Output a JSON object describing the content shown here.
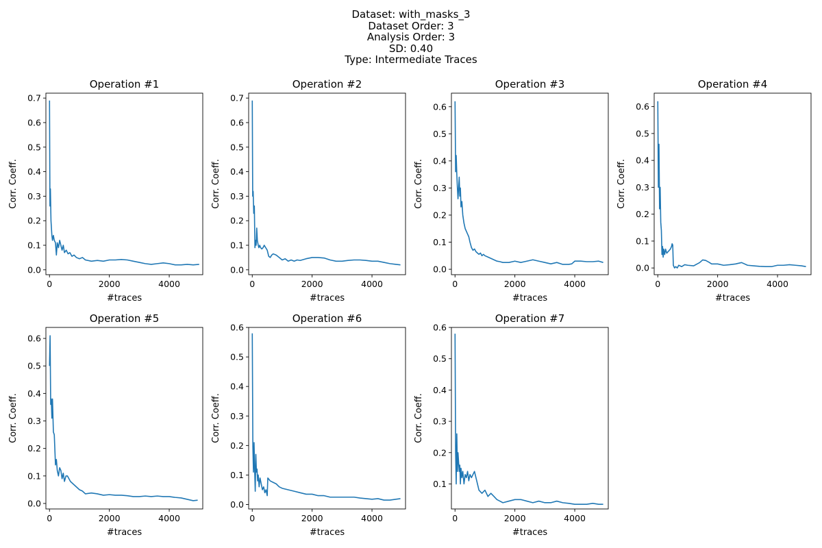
{
  "figure": {
    "suptitle_lines": [
      "Dataset: with_masks_3",
      "Dataset Order: 3",
      "Analysis Order: 3",
      "SD: 0.40",
      "Type: Intermediate Traces"
    ]
  },
  "colors": {
    "line": "#1f77b4",
    "axes": "#000000",
    "background": "#ffffff"
  },
  "chart_data": [
    {
      "type": "line",
      "title": "Operation #1",
      "xlabel": "#traces",
      "ylabel": "Corr. Coeff.",
      "xlim": [
        -120,
        5120
      ],
      "ylim": [
        -0.02,
        0.72
      ],
      "xticks": [
        0,
        2000,
        4000
      ],
      "yticks": [
        0.0,
        0.1,
        0.2,
        0.3,
        0.4,
        0.5,
        0.6,
        0.7
      ],
      "ytick_labels": [
        "0.0",
        "0.1",
        "0.2",
        "0.3",
        "0.4",
        "0.5",
        "0.6",
        "0.7"
      ],
      "grid": false,
      "series": [
        {
          "x": [
            1,
            15,
            30,
            50,
            80,
            100,
            130,
            160,
            200,
            230,
            260,
            300,
            340,
            380,
            420,
            460,
            500,
            560,
            620,
            680,
            750,
            820,
            900,
            1000,
            1100,
            1200,
            1400,
            1600,
            1800,
            2000,
            2200,
            2400,
            2600,
            2800,
            3000,
            3200,
            3400,
            3600,
            3800,
            4000,
            4200,
            4400,
            4600,
            4800,
            5000
          ],
          "y": [
            0.69,
            0.26,
            0.33,
            0.2,
            0.14,
            0.12,
            0.14,
            0.12,
            0.11,
            0.06,
            0.11,
            0.09,
            0.12,
            0.1,
            0.08,
            0.1,
            0.07,
            0.08,
            0.065,
            0.07,
            0.055,
            0.06,
            0.05,
            0.045,
            0.05,
            0.04,
            0.035,
            0.038,
            0.035,
            0.04,
            0.04,
            0.042,
            0.04,
            0.035,
            0.03,
            0.025,
            0.022,
            0.025,
            0.028,
            0.025,
            0.02,
            0.02,
            0.022,
            0.02,
            0.022
          ]
        }
      ]
    },
    {
      "type": "line",
      "title": "Operation #2",
      "xlabel": "#traces",
      "ylabel": "Corr. Coeff.",
      "xlim": [
        -120,
        5120
      ],
      "ylim": [
        -0.02,
        0.72
      ],
      "xticks": [
        0,
        2000,
        4000
      ],
      "yticks": [
        0.0,
        0.1,
        0.2,
        0.3,
        0.4,
        0.5,
        0.6,
        0.7
      ],
      "ytick_labels": [
        "0.0",
        "0.1",
        "0.2",
        "0.3",
        "0.4",
        "0.5",
        "0.6",
        "0.7"
      ],
      "grid": false,
      "series": [
        {
          "x": [
            1,
            15,
            30,
            50,
            70,
            90,
            110,
            130,
            150,
            170,
            200,
            220,
            250,
            280,
            320,
            360,
            400,
            450,
            500,
            550,
            600,
            650,
            700,
            800,
            900,
            1000,
            1100,
            1200,
            1300,
            1400,
            1500,
            1600,
            1800,
            2000,
            2200,
            2400,
            2600,
            2800,
            3000,
            3200,
            3400,
            3600,
            3800,
            4000,
            4200,
            4400,
            4600,
            4800,
            4950
          ],
          "y": [
            0.69,
            0.3,
            0.32,
            0.23,
            0.26,
            0.09,
            0.12,
            0.1,
            0.17,
            0.12,
            0.1,
            0.09,
            0.1,
            0.09,
            0.085,
            0.09,
            0.1,
            0.09,
            0.08,
            0.055,
            0.05,
            0.06,
            0.065,
            0.06,
            0.05,
            0.04,
            0.045,
            0.035,
            0.04,
            0.035,
            0.04,
            0.038,
            0.045,
            0.05,
            0.05,
            0.048,
            0.04,
            0.035,
            0.035,
            0.038,
            0.04,
            0.04,
            0.038,
            0.035,
            0.035,
            0.03,
            0.025,
            0.022,
            0.02
          ]
        }
      ]
    },
    {
      "type": "line",
      "title": "Operation #3",
      "xlabel": "#traces",
      "ylabel": "Corr. Coeff.",
      "xlim": [
        -120,
        5120
      ],
      "ylim": [
        -0.02,
        0.65
      ],
      "xticks": [
        0,
        2000,
        4000
      ],
      "yticks": [
        0.0,
        0.1,
        0.2,
        0.3,
        0.4,
        0.5,
        0.6
      ],
      "ytick_labels": [
        "0.0",
        "0.1",
        "0.2",
        "0.3",
        "0.4",
        "0.5",
        "0.6"
      ],
      "grid": false,
      "series": [
        {
          "x": [
            1,
            20,
            40,
            60,
            80,
            100,
            120,
            140,
            160,
            180,
            200,
            230,
            260,
            300,
            340,
            380,
            420,
            460,
            500,
            550,
            600,
            650,
            700,
            750,
            800,
            850,
            900,
            950,
            1000,
            1100,
            1200,
            1300,
            1400,
            1500,
            1600,
            1800,
            2000,
            2200,
            2400,
            2600,
            2800,
            3000,
            3200,
            3400,
            3600,
            3800,
            3900,
            4000,
            4200,
            4400,
            4600,
            4800,
            4950
          ],
          "y": [
            0.62,
            0.36,
            0.42,
            0.35,
            0.3,
            0.26,
            0.3,
            0.34,
            0.27,
            0.3,
            0.23,
            0.25,
            0.2,
            0.17,
            0.15,
            0.14,
            0.13,
            0.12,
            0.1,
            0.08,
            0.07,
            0.075,
            0.065,
            0.06,
            0.055,
            0.06,
            0.05,
            0.055,
            0.05,
            0.045,
            0.04,
            0.035,
            0.03,
            0.028,
            0.025,
            0.025,
            0.03,
            0.025,
            0.03,
            0.035,
            0.03,
            0.025,
            0.02,
            0.025,
            0.018,
            0.018,
            0.02,
            0.03,
            0.03,
            0.028,
            0.028,
            0.03,
            0.025
          ]
        }
      ]
    },
    {
      "type": "line",
      "title": "Operation #4",
      "xlabel": "#traces",
      "ylabel": "Corr. Coeff.",
      "xlim": [
        -120,
        5120
      ],
      "ylim": [
        -0.025,
        0.65
      ],
      "xticks": [
        0,
        2000,
        4000
      ],
      "yticks": [
        0.0,
        0.1,
        0.2,
        0.3,
        0.4,
        0.5,
        0.6
      ],
      "ytick_labels": [
        "0.0",
        "0.1",
        "0.2",
        "0.3",
        "0.4",
        "0.5",
        "0.6"
      ],
      "grid": false,
      "series": [
        {
          "x": [
            1,
            20,
            40,
            60,
            80,
            100,
            120,
            140,
            160,
            180,
            200,
            230,
            260,
            300,
            340,
            380,
            420,
            460,
            480,
            500,
            520,
            560,
            600,
            650,
            700,
            800,
            900,
            1000,
            1200,
            1400,
            1500,
            1600,
            1700,
            1800,
            2000,
            2200,
            2400,
            2600,
            2800,
            3000,
            3200,
            3400,
            3600,
            3800,
            4000,
            4200,
            4400,
            4600,
            4800,
            4950
          ],
          "y": [
            0.62,
            0.3,
            0.46,
            0.22,
            0.3,
            0.17,
            0.14,
            0.05,
            0.08,
            0.04,
            0.07,
            0.05,
            0.07,
            0.055,
            0.06,
            0.065,
            0.07,
            0.08,
            0.09,
            0.085,
            0.01,
            0.0,
            0.005,
            0.0,
            0.01,
            0.005,
            0.012,
            0.01,
            0.008,
            0.02,
            0.03,
            0.028,
            0.022,
            0.015,
            0.015,
            0.01,
            0.012,
            0.015,
            0.02,
            0.01,
            0.008,
            0.006,
            0.005,
            0.005,
            0.01,
            0.01,
            0.012,
            0.01,
            0.008,
            0.005
          ]
        }
      ]
    },
    {
      "type": "line",
      "title": "Operation #5",
      "xlabel": "#traces",
      "ylabel": "Corr. Coeff.",
      "xlim": [
        -120,
        5120
      ],
      "ylim": [
        -0.02,
        0.64
      ],
      "xticks": [
        0,
        2000,
        4000
      ],
      "yticks": [
        0.0,
        0.1,
        0.2,
        0.3,
        0.4,
        0.5,
        0.6
      ],
      "ytick_labels": [
        "0.0",
        "0.1",
        "0.2",
        "0.3",
        "0.4",
        "0.5",
        "0.6"
      ],
      "grid": false,
      "series": [
        {
          "x": [
            1,
            20,
            40,
            60,
            80,
            100,
            130,
            160,
            200,
            230,
            260,
            300,
            340,
            380,
            420,
            460,
            500,
            550,
            600,
            650,
            700,
            800,
            900,
            1000,
            1100,
            1200,
            1400,
            1600,
            1800,
            2000,
            2200,
            2400,
            2600,
            2800,
            3000,
            3200,
            3400,
            3600,
            3800,
            4000,
            4200,
            4400,
            4600,
            4800,
            4950
          ],
          "y": [
            0.5,
            0.61,
            0.36,
            0.38,
            0.31,
            0.38,
            0.26,
            0.25,
            0.14,
            0.16,
            0.12,
            0.1,
            0.13,
            0.12,
            0.09,
            0.11,
            0.08,
            0.1,
            0.1,
            0.09,
            0.08,
            0.07,
            0.06,
            0.05,
            0.045,
            0.035,
            0.038,
            0.035,
            0.03,
            0.032,
            0.03,
            0.03,
            0.028,
            0.025,
            0.025,
            0.027,
            0.025,
            0.027,
            0.025,
            0.025,
            0.022,
            0.02,
            0.015,
            0.01,
            0.012
          ]
        }
      ]
    },
    {
      "type": "line",
      "title": "Operation #6",
      "xlabel": "#traces",
      "ylabel": "Corr. Coeff.",
      "xlim": [
        -120,
        5120
      ],
      "ylim": [
        -0.015,
        0.6
      ],
      "xticks": [
        0,
        2000,
        4000
      ],
      "yticks": [
        0.0,
        0.1,
        0.2,
        0.3,
        0.4,
        0.5,
        0.6
      ],
      "ytick_labels": [
        "0.0",
        "0.1",
        "0.2",
        "0.3",
        "0.4",
        "0.5",
        "0.6"
      ],
      "grid": false,
      "series": [
        {
          "x": [
            1,
            20,
            40,
            60,
            80,
            100,
            120,
            140,
            160,
            180,
            200,
            230,
            260,
            300,
            340,
            380,
            420,
            460,
            500,
            520,
            560,
            600,
            700,
            800,
            900,
            1000,
            1200,
            1400,
            1600,
            1800,
            2000,
            2200,
            2400,
            2600,
            2800,
            3000,
            3200,
            3400,
            3600,
            3800,
            4000,
            4200,
            4400,
            4600,
            4800,
            4950
          ],
          "y": [
            0.58,
            0.2,
            0.11,
            0.21,
            0.12,
            0.045,
            0.17,
            0.11,
            0.12,
            0.08,
            0.1,
            0.06,
            0.09,
            0.07,
            0.05,
            0.06,
            0.04,
            0.05,
            0.03,
            0.09,
            0.085,
            0.08,
            0.075,
            0.07,
            0.06,
            0.055,
            0.05,
            0.045,
            0.04,
            0.035,
            0.035,
            0.03,
            0.03,
            0.025,
            0.025,
            0.025,
            0.025,
            0.025,
            0.022,
            0.02,
            0.018,
            0.02,
            0.015,
            0.015,
            0.018,
            0.02
          ]
        }
      ]
    },
    {
      "type": "line",
      "title": "Operation #7",
      "xlabel": "#traces",
      "ylabel": "Corr. Coeff.",
      "xlim": [
        -120,
        5120
      ],
      "ylim": [
        0.02,
        0.6
      ],
      "xticks": [
        0,
        2000,
        4000
      ],
      "yticks": [
        0.1,
        0.2,
        0.3,
        0.4,
        0.5,
        0.6
      ],
      "ytick_labels": [
        "0.1",
        "0.2",
        "0.3",
        "0.4",
        "0.5",
        "0.6"
      ],
      "grid": false,
      "series": [
        {
          "x": [
            1,
            20,
            40,
            60,
            80,
            100,
            120,
            140,
            160,
            180,
            200,
            230,
            260,
            300,
            340,
            380,
            420,
            460,
            500,
            550,
            600,
            650,
            700,
            750,
            800,
            900,
            1000,
            1100,
            1200,
            1300,
            1400,
            1500,
            1600,
            1800,
            2000,
            2200,
            2400,
            2600,
            2800,
            3000,
            3200,
            3400,
            3600,
            3800,
            4000,
            4200,
            4400,
            4600,
            4800,
            4950
          ],
          "y": [
            0.58,
            0.2,
            0.1,
            0.26,
            0.14,
            0.2,
            0.17,
            0.14,
            0.16,
            0.1,
            0.15,
            0.12,
            0.14,
            0.1,
            0.13,
            0.12,
            0.14,
            0.11,
            0.13,
            0.12,
            0.13,
            0.14,
            0.12,
            0.1,
            0.08,
            0.07,
            0.08,
            0.06,
            0.07,
            0.06,
            0.05,
            0.045,
            0.04,
            0.045,
            0.05,
            0.05,
            0.045,
            0.04,
            0.045,
            0.04,
            0.04,
            0.045,
            0.04,
            0.038,
            0.035,
            0.035,
            0.035,
            0.038,
            0.035,
            0.035
          ]
        }
      ]
    }
  ]
}
